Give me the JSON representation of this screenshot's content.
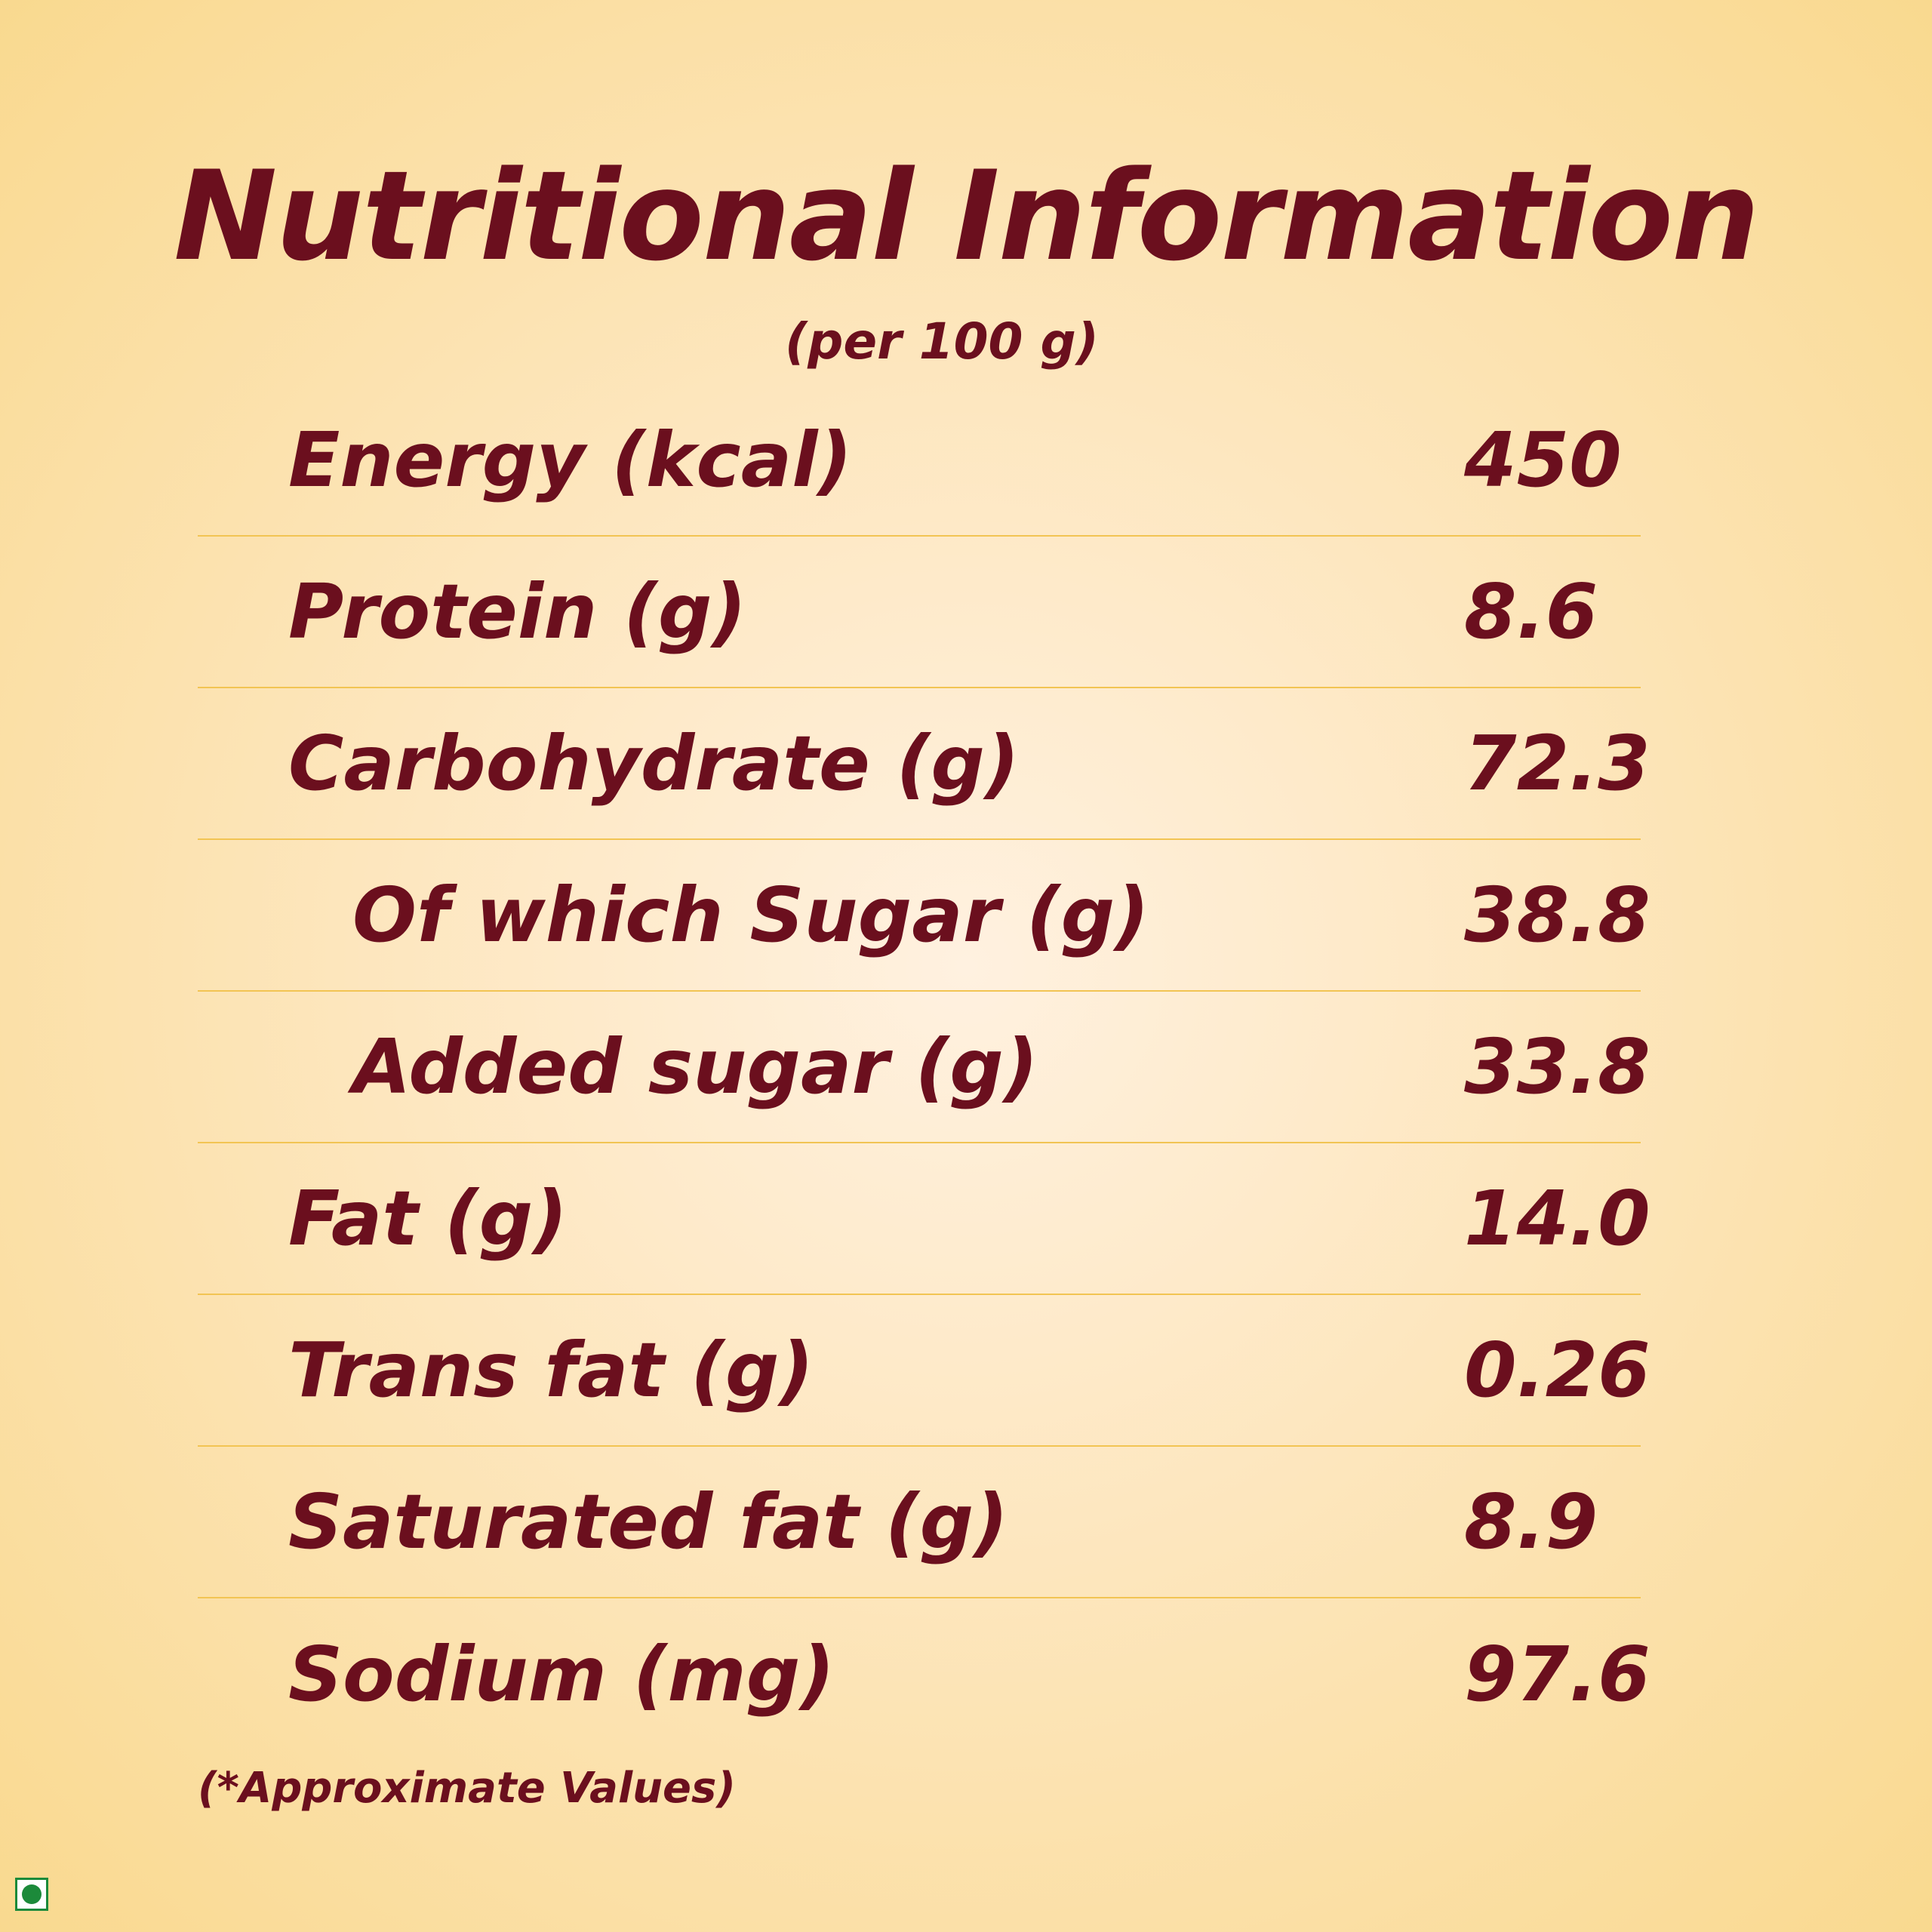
{
  "title": "Nutritional Information",
  "subtitle": "(per 100 g)",
  "rows": [
    {
      "label": "Energy (kcal)",
      "value": "450"
    },
    {
      "label": "Protein (g)",
      "value": "8.6"
    },
    {
      "label": "Carbohydrate (g)",
      "value": "72.3"
    },
    {
      "label": "Of which Sugar (g)",
      "value": "38.8"
    },
    {
      "label": "Added sugar (g)",
      "value": "33.8"
    },
    {
      "label": "Fat (g)",
      "value": "14.0"
    },
    {
      "label": "Trans fat (g)",
      "value": "0.26"
    },
    {
      "label": "Saturated fat (g)",
      "value": "8.9"
    },
    {
      "label": "Sodium (mg)",
      "value": "97.6"
    }
  ],
  "footnote": "(*Approximate Values)",
  "colors": {
    "text": "#6b0f1e",
    "divider": "#f2c453",
    "veg_mark": "#1c8a3a"
  },
  "icons": {
    "veg_mark": "vegetarian-symbol-icon"
  }
}
